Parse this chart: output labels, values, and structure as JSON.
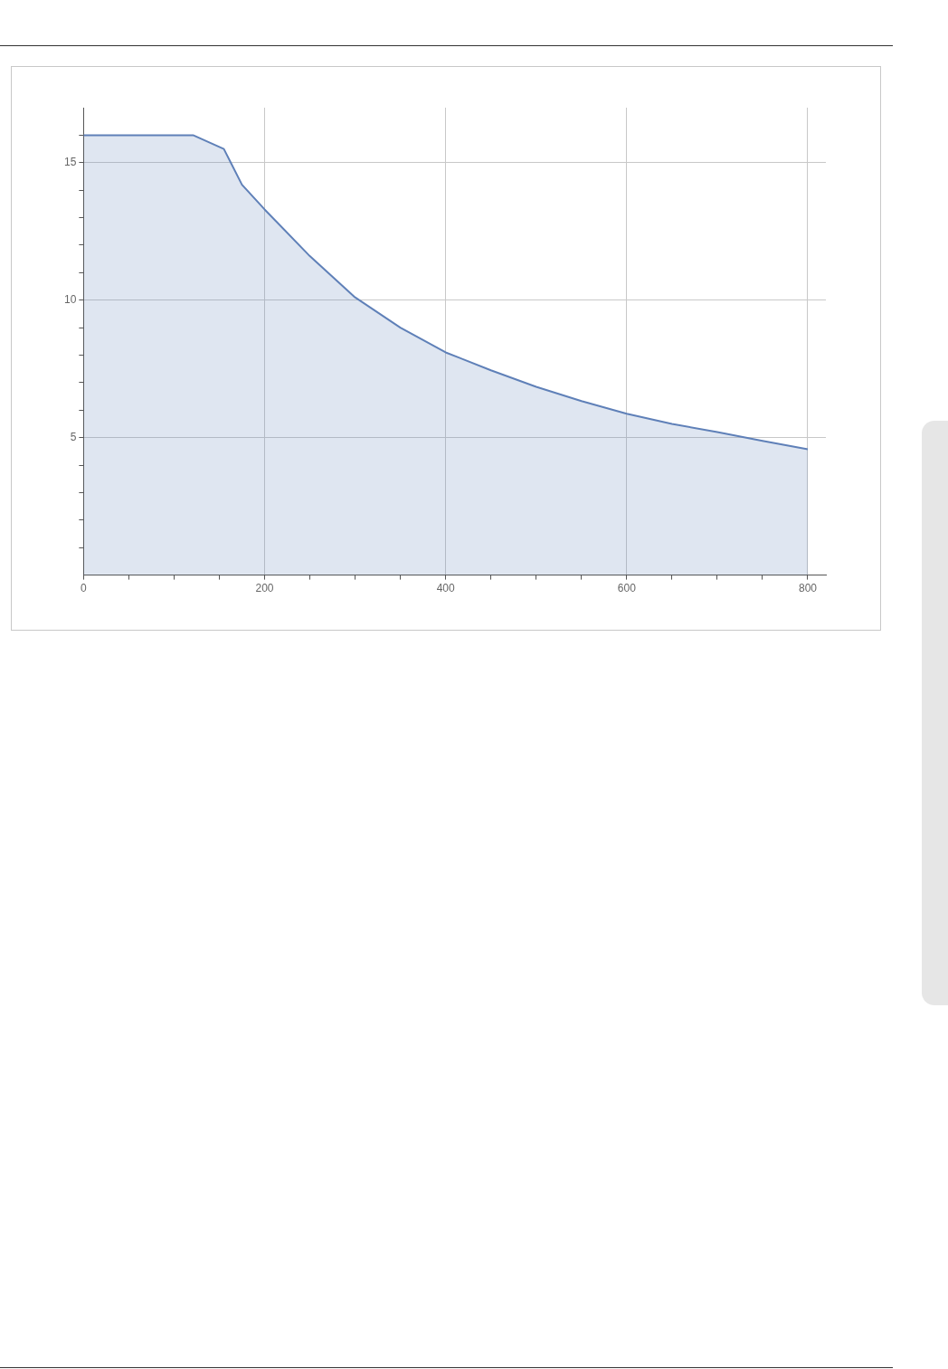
{
  "chart_data": {
    "type": "area",
    "x": [
      0,
      121,
      155,
      175,
      200,
      250,
      300,
      350,
      400,
      450,
      500,
      550,
      600,
      650,
      700,
      750,
      800
    ],
    "series": [
      {
        "color": "#5f80b8",
        "values": [
          16,
          16,
          15.5,
          14.2,
          13.3,
          11.6,
          10.1,
          9.0,
          8.1,
          7.45,
          6.85,
          6.33,
          5.87,
          5.5,
          5.2,
          4.88,
          4.58
        ]
      }
    ],
    "xlim": [
      0,
      820
    ],
    "ylim": [
      0,
      17
    ],
    "xticks": [
      0,
      {
        "value": 50,
        "label": null
      },
      {
        "value": 100,
        "label": null
      },
      {
        "value": 150,
        "label": null
      },
      200,
      {
        "value": 250,
        "label": null
      },
      {
        "value": 300,
        "label": null
      },
      {
        "value": 350,
        "label": null
      },
      400,
      {
        "value": 450,
        "label": null
      },
      {
        "value": 500,
        "label": null
      },
      {
        "value": 550,
        "label": null
      },
      600,
      {
        "value": 650,
        "label": null
      },
      {
        "value": 700,
        "label": null
      },
      {
        "value": 750,
        "label": null
      },
      800
    ],
    "yticks": [
      {
        "value": 1,
        "label": null
      },
      {
        "value": 2,
        "label": null
      },
      {
        "value": 3,
        "label": null
      },
      {
        "value": 4,
        "label": null
      },
      5,
      {
        "value": 6,
        "label": null
      },
      {
        "value": 7,
        "label": null
      },
      {
        "value": 8,
        "label": null
      },
      {
        "value": 9,
        "label": null
      },
      10,
      {
        "value": 11,
        "label": null
      },
      {
        "value": 12,
        "label": null
      },
      {
        "value": 13,
        "label": null
      },
      {
        "value": 14,
        "label": null
      },
      15,
      {
        "value": 16,
        "label": null
      }
    ],
    "grid": true,
    "legend": false
  }
}
